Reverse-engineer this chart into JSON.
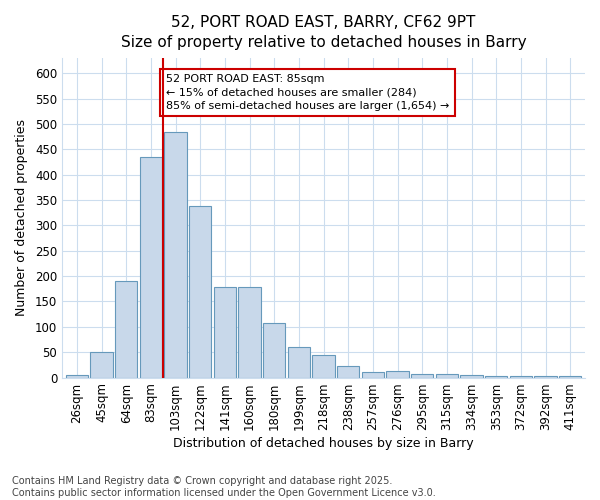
{
  "title1": "52, PORT ROAD EAST, BARRY, CF62 9PT",
  "title2": "Size of property relative to detached houses in Barry",
  "xlabel": "Distribution of detached houses by size in Barry",
  "ylabel": "Number of detached properties",
  "categories": [
    "26sqm",
    "45sqm",
    "64sqm",
    "83sqm",
    "103sqm",
    "122sqm",
    "141sqm",
    "160sqm",
    "180sqm",
    "199sqm",
    "218sqm",
    "238sqm",
    "257sqm",
    "276sqm",
    "295sqm",
    "315sqm",
    "334sqm",
    "353sqm",
    "372sqm",
    "392sqm",
    "411sqm"
  ],
  "values": [
    5,
    50,
    190,
    435,
    483,
    338,
    178,
    178,
    108,
    60,
    45,
    22,
    10,
    12,
    7,
    7,
    5,
    3,
    3,
    3,
    3
  ],
  "bar_color": "#c8d8ea",
  "bar_edge_color": "#6699bb",
  "highlight_index": 3,
  "highlight_line_color": "#cc0000",
  "annotation_box_edge_color": "#cc0000",
  "ylim": [
    0,
    630
  ],
  "yticks": [
    0,
    50,
    100,
    150,
    200,
    250,
    300,
    350,
    400,
    450,
    500,
    550,
    600
  ],
  "annotation_title": "52 PORT ROAD EAST: 85sqm",
  "annotation_line1": "← 15% of detached houses are smaller (284)",
  "annotation_line2": "85% of semi-detached houses are larger (1,654) →",
  "footnote1": "Contains HM Land Registry data © Crown copyright and database right 2025.",
  "footnote2": "Contains public sector information licensed under the Open Government Licence v3.0.",
  "bg_color": "#ffffff",
  "plot_bg_color": "#ffffff",
  "grid_color": "#ccddee",
  "title_fontsize": 11,
  "subtitle_fontsize": 10,
  "axis_label_fontsize": 9,
  "tick_fontsize": 8.5,
  "annotation_fontsize": 8,
  "footnote_fontsize": 7
}
